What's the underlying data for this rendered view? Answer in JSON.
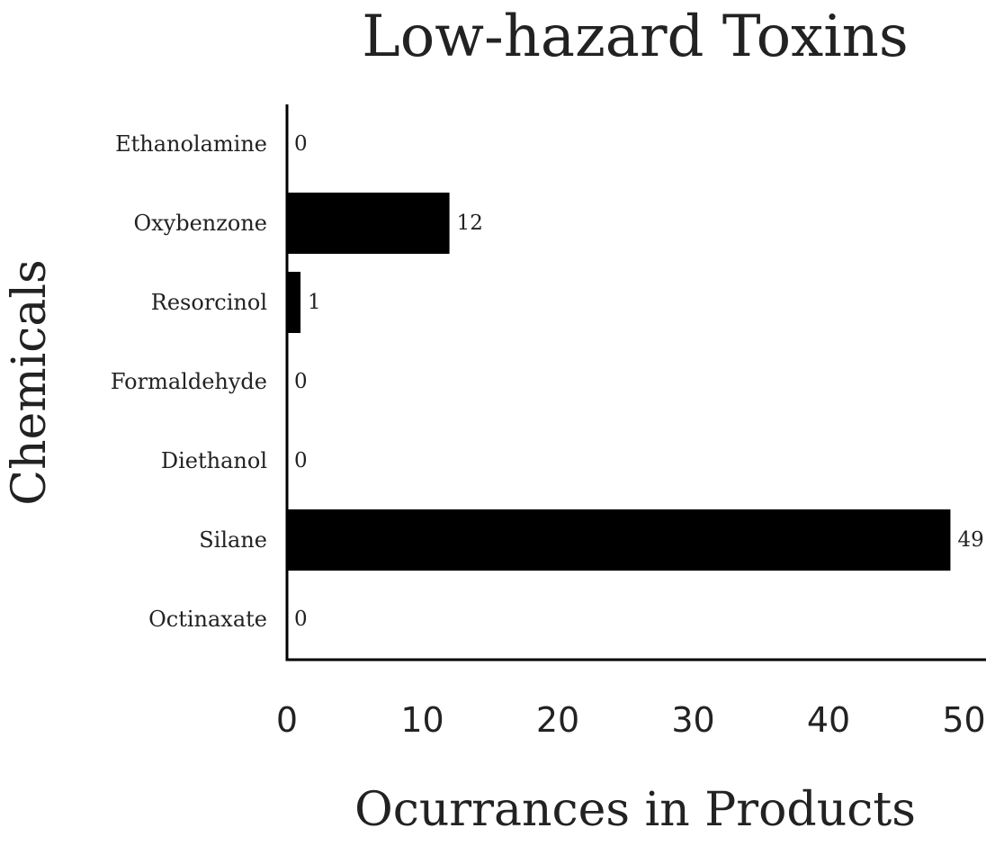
{
  "chart_data": {
    "type": "bar",
    "orientation": "horizontal",
    "title": "Low-hazard Toxins",
    "xlabel": "Ocurrances in Products",
    "ylabel": "Chemicals",
    "categories": [
      "Ethanolamine",
      "Oxybenzone",
      "Resorcinol",
      "Formaldehyde",
      "Diethanol",
      "Silane",
      "Octinaxate"
    ],
    "values": [
      0,
      12,
      1,
      0,
      0,
      49,
      0
    ],
    "value_labels": [
      "0",
      "12",
      "1",
      "0",
      "0",
      "49",
      "0"
    ],
    "xlim": [
      0,
      51.5
    ],
    "xticks": [
      0,
      10,
      20,
      30,
      40,
      50
    ],
    "xtick_labels": [
      "0",
      "10",
      "20",
      "30",
      "40",
      "50"
    ],
    "bar_color": "#000000",
    "grid": false,
    "legend": "none"
  }
}
